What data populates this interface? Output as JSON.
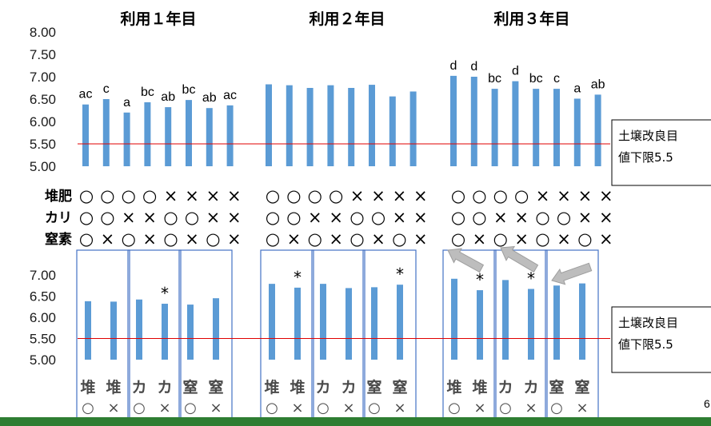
{
  "colors": {
    "bar": "#5b9bd5",
    "threshold": "#e00000",
    "box": "#4472c4",
    "arrow": "#bdbdbd",
    "footer": "#2e7d32"
  },
  "year_labels": [
    "利用１年目",
    "利用２年目",
    "利用３年目"
  ],
  "threshold_note": {
    "line1": "土壌改良目",
    "line2": "値下限5.5"
  },
  "page_number": "6",
  "treatments": {
    "row_labels": [
      "堆肥",
      "カリ",
      "窒素"
    ],
    "rows": [
      [
        "○",
        "○",
        "○",
        "○",
        "×",
        "×",
        "×",
        "×"
      ],
      [
        "○",
        "○",
        "×",
        "×",
        "○",
        "○",
        "×",
        "×"
      ],
      [
        "○",
        "×",
        "○",
        "×",
        "○",
        "×",
        "○",
        "×"
      ]
    ]
  },
  "group_labels": {
    "top": [
      "堆",
      "堆",
      "カ",
      "カ",
      "窒",
      "窒"
    ],
    "bottom": [
      "○",
      "×",
      "○",
      "×",
      "○",
      "×"
    ]
  },
  "chart_data": [
    {
      "type": "bar",
      "ylim": [
        5.0,
        8.0
      ],
      "yticks": [
        "8.00",
        "7.50",
        "7.00",
        "6.50",
        "6.00",
        "5.50",
        "5.00"
      ],
      "threshold": 5.5,
      "groups": [
        "利用１年目",
        "利用２年目",
        "利用３年目"
      ],
      "series": [
        {
          "values": [
            6.38,
            6.5,
            6.2,
            6.43,
            6.32,
            6.48,
            6.3,
            6.36
          ],
          "labels": [
            "ac",
            "c",
            "a",
            "bc",
            "ab",
            "bc",
            "ab",
            "ac"
          ]
        },
        {
          "values": [
            6.83,
            6.81,
            6.75,
            6.81,
            6.75,
            6.82,
            6.56,
            6.67
          ],
          "labels": [
            "",
            "",
            "",
            "",
            "",
            "",
            "",
            ""
          ]
        },
        {
          "values": [
            7.02,
            7.0,
            6.73,
            6.9,
            6.73,
            6.73,
            6.51,
            6.6
          ],
          "labels": [
            "d",
            "d",
            "bc",
            "d",
            "bc",
            "c",
            "a",
            "ab"
          ]
        }
      ]
    },
    {
      "type": "bar",
      "ylim": [
        5.0,
        7.0
      ],
      "yticks": [
        "7.00",
        "6.50",
        "6.00",
        "5.50",
        "5.00"
      ],
      "threshold": 5.5,
      "categories": [
        "堆○",
        "堆×",
        "カ○",
        "カ×",
        "窒○",
        "窒×"
      ],
      "series": [
        {
          "values": [
            6.38,
            6.37,
            6.42,
            6.32,
            6.3,
            6.45
          ],
          "stars": [
            "",
            "",
            "",
            "*",
            "",
            ""
          ]
        },
        {
          "values": [
            6.79,
            6.7,
            6.79,
            6.69,
            6.71,
            6.77
          ],
          "stars": [
            "",
            "*",
            "",
            "",
            "",
            "*"
          ]
        },
        {
          "values": [
            6.91,
            6.64,
            6.88,
            6.67,
            6.75,
            6.8
          ],
          "stars": [
            "",
            "*",
            "",
            "*",
            "",
            "*"
          ]
        }
      ]
    }
  ]
}
